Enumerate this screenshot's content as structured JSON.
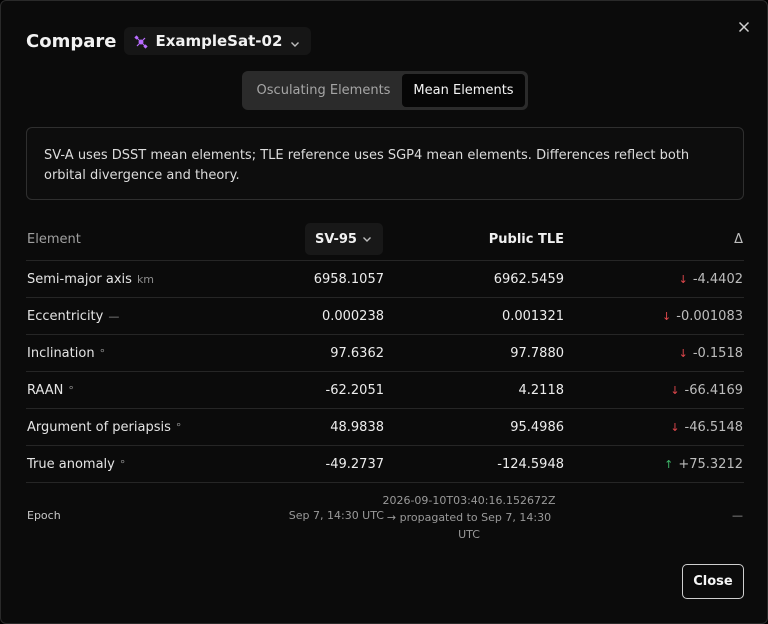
{
  "colors": {
    "accent_satellite": "#b86bff",
    "delta_down": "#e0474c",
    "delta_up": "#3fb86a"
  },
  "header": {
    "title": "Compare",
    "satellite": "ExampleSat-02",
    "satellite_icon": "satellite-icon",
    "dropdown_icon": "chevron-down-icon",
    "close_icon": "close-icon"
  },
  "tabs": [
    {
      "label": "Osculating Elements",
      "active": false
    },
    {
      "label": "Mean Elements",
      "active": true
    }
  ],
  "info_text": "SV-A uses DSST mean elements; TLE reference uses SGP4 mean elements. Differences reflect both orbital divergence and theory.",
  "table": {
    "headers": {
      "element": "Element",
      "source_a": "SV-95",
      "source_b": "Public TLE",
      "delta": "Δ"
    },
    "rows": [
      {
        "name": "Semi-major axis",
        "unit": "km",
        "a": "6958.1057",
        "b": "6962.5459",
        "delta": "-4.4402",
        "direction": "down",
        "arrow": "↓"
      },
      {
        "name": "Eccentricity",
        "unit": "—",
        "a": "0.000238",
        "b": "0.001321",
        "delta": "-0.001083",
        "direction": "down",
        "arrow": "↓"
      },
      {
        "name": "Inclination",
        "unit": "°",
        "a": "97.6362",
        "b": "97.7880",
        "delta": "-0.1518",
        "direction": "down",
        "arrow": "↓"
      },
      {
        "name": "RAAN",
        "unit": "°",
        "a": "-62.2051",
        "b": "4.2118",
        "delta": "-66.4169",
        "direction": "down",
        "arrow": "↓"
      },
      {
        "name": "Argument of periapsis",
        "unit": "°",
        "a": "48.9838",
        "b": "95.4986",
        "delta": "-46.5148",
        "direction": "down",
        "arrow": "↓"
      },
      {
        "name": "True anomaly",
        "unit": "°",
        "a": "-49.2737",
        "b": "-124.5948",
        "delta": "+75.3212",
        "direction": "up",
        "arrow": "↑"
      }
    ],
    "epoch": {
      "label": "Epoch",
      "a": "Sep 7, 14:30 UTC",
      "b_line1": "2026-09-10T03:40:16.152672Z",
      "b_line2": "→ propagated to Sep 7, 14:30",
      "b_line3": "UTC",
      "delta": "—"
    }
  },
  "footer": {
    "close_label": "Close"
  }
}
